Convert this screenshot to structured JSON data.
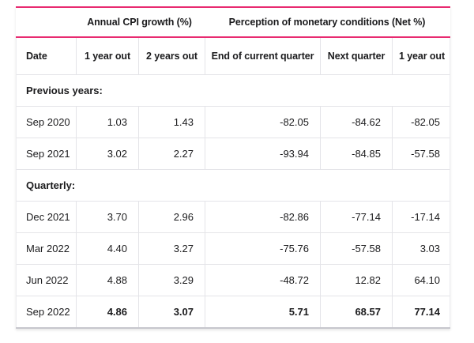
{
  "colors": {
    "accent": "#e82a70",
    "row_separator": "#e4e4e8",
    "bottom_border": "#c7c7cd",
    "text": "#1b1b1d"
  },
  "chart_data": {
    "type": "table",
    "column_groups": [
      {
        "label": "Annual CPI growth (%)",
        "span": 2
      },
      {
        "label": "Perception of monetary conditions (Net %)",
        "span": 3
      }
    ],
    "columns": [
      "Date",
      "1 year out",
      "2 years out",
      "End of current quarter",
      "Next quarter",
      "1 year out"
    ],
    "sections": [
      {
        "label": "Previous years:",
        "rows": [
          {
            "date": "Sep 2020",
            "values": [
              "1.03",
              "1.43",
              "-82.05",
              "-84.62",
              "-82.05"
            ],
            "bold": false
          },
          {
            "date": "Sep 2021",
            "values": [
              "3.02",
              "2.27",
              "-93.94",
              "-84.85",
              "-57.58"
            ],
            "bold": false
          }
        ]
      },
      {
        "label": "Quarterly:",
        "rows": [
          {
            "date": "Dec 2021",
            "values": [
              "3.70",
              "2.96",
              "-82.86",
              "-77.14",
              "-17.14"
            ],
            "bold": false
          },
          {
            "date": "Mar 2022",
            "values": [
              "4.40",
              "3.27",
              "-75.76",
              "-57.58",
              "3.03"
            ],
            "bold": false
          },
          {
            "date": "Jun 2022",
            "values": [
              "4.88",
              "3.29",
              "-48.72",
              "12.82",
              "64.10"
            ],
            "bold": false
          },
          {
            "date": "Sep 2022",
            "values": [
              "4.86",
              "3.07",
              "5.71",
              "68.57",
              "77.14"
            ],
            "bold": true
          }
        ]
      }
    ]
  }
}
